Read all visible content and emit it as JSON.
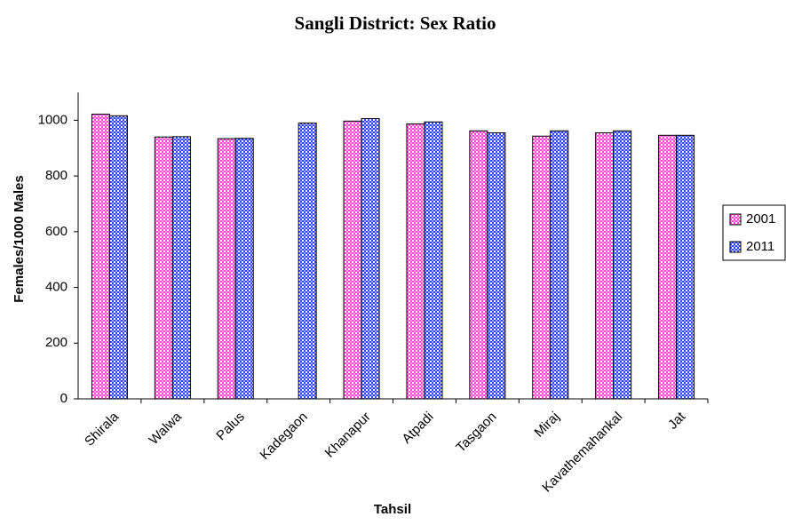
{
  "chart_data": {
    "type": "bar",
    "title": "Sangli District: Sex Ratio",
    "x_label": "Tahsil",
    "y_label": "Females/1000 Males",
    "categories": [
      "Shirala",
      "Walwa",
      "Palus",
      "Kadegaon",
      "Khanapur",
      "Atpadi",
      "Tasgaon",
      "Miraj",
      "Kavathemahankal",
      "Jat"
    ],
    "series": [
      {
        "name": "2001",
        "color": "#ff44cc",
        "values": [
          1022,
          940,
          934,
          null,
          997,
          987,
          962,
          943,
          955,
          946
        ]
      },
      {
        "name": "2011",
        "color": "#3344ff",
        "values": [
          1016,
          941,
          935,
          990,
          1006,
          994,
          955,
          962,
          962,
          946
        ]
      }
    ],
    "ylim": [
      0,
      1100
    ],
    "yticks": [
      0,
      200,
      400,
      600,
      800,
      1000
    ]
  }
}
